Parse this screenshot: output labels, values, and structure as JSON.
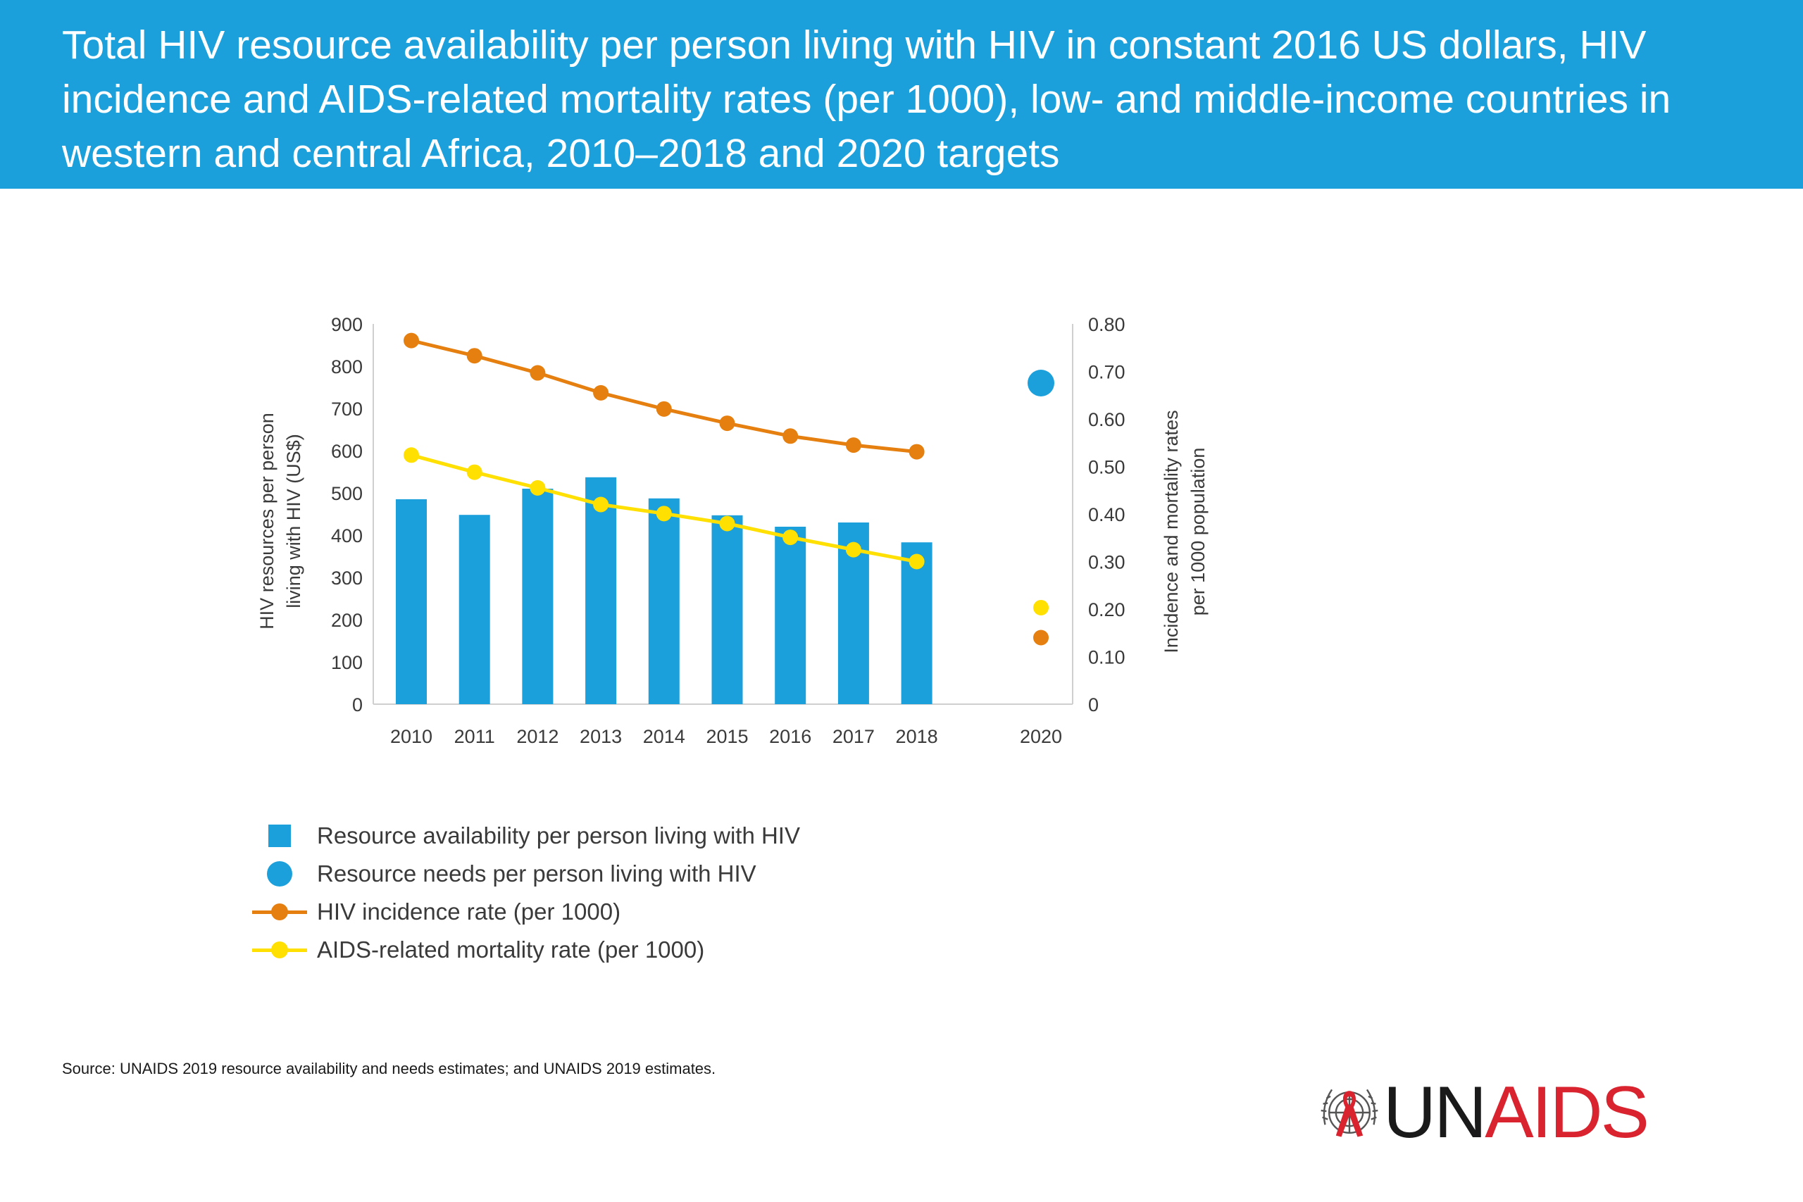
{
  "header": {
    "title": "Total HIV resource availability per person living with HIV in constant 2016 US dollars, HIV incidence and AIDS-related mortality rates (per 1000), low- and middle-income countries in western and central Africa, 2010–2018 and 2020 targets"
  },
  "chart_data": {
    "type": "bar",
    "title": "",
    "categories": [
      "2010",
      "2011",
      "2012",
      "2013",
      "2014",
      "2015",
      "2016",
      "2017",
      "2018",
      "2020"
    ],
    "ylabel_left": "HIV resources per person living with HIV (US$)",
    "ylabel_right": "Incidence and mortality rates per 1000 population",
    "ylim_left": [
      0,
      900
    ],
    "ylim_right": [
      0,
      0.8
    ],
    "left_ticks": [
      "0",
      "100",
      "200",
      "300",
      "400",
      "500",
      "600",
      "700",
      "800",
      "900"
    ],
    "right_ticks": [
      "0",
      "0.10",
      "0.20",
      "0.30",
      "0.40",
      "0.50",
      "0.60",
      "0.70",
      "0.80"
    ],
    "grid": false,
    "legend_position": "bottom-left",
    "series": [
      {
        "name": "Resource availability per person living with HIV",
        "kind": "bar",
        "axis": "left",
        "color": "#1ba0dc",
        "values": [
          485,
          448,
          510,
          537,
          487,
          447,
          420,
          430,
          383,
          null
        ]
      },
      {
        "name": "Resource needs per person living with HIV",
        "kind": "point",
        "axis": "left",
        "color": "#1ba0dc",
        "values": [
          null,
          null,
          null,
          null,
          null,
          null,
          null,
          null,
          null,
          760
        ]
      },
      {
        "name": "HIV incidence rate (per 1000)",
        "kind": "line",
        "axis": "right",
        "color": "#e57f0f",
        "values": [
          0.765,
          0.733,
          0.697,
          0.655,
          0.621,
          0.591,
          0.564,
          0.545,
          0.531,
          null
        ],
        "target": 0.14
      },
      {
        "name": "AIDS-related mortality rate (per 1000)",
        "kind": "line",
        "axis": "right",
        "color": "#ffe000",
        "values": [
          0.524,
          0.488,
          0.455,
          0.42,
          0.401,
          0.38,
          0.351,
          0.325,
          0.3,
          null
        ],
        "target": 0.203
      }
    ]
  },
  "legend": {
    "items": [
      {
        "label": "Resource availability per person living with HIV",
        "marker": "square",
        "color": "#1ba0dc"
      },
      {
        "label": "Resource needs per person living with HIV",
        "marker": "circle",
        "color": "#1ba0dc"
      },
      {
        "label": "HIV incidence rate (per 1000)",
        "marker": "line-dot",
        "color": "#e57f0f"
      },
      {
        "label": "AIDS-related mortality rate (per 1000)",
        "marker": "line-dot",
        "color": "#ffe000"
      }
    ]
  },
  "source": {
    "prefix": "Source:",
    "text": "UNAIDS 2019 resource availability and needs estimates; and UNAIDS 2019 estimates."
  },
  "logo": {
    "part1": "UN",
    "part2": "AIDS",
    "emblem_icon": "un-emblem-ribbon-icon",
    "color_dark": "#1a1a1a",
    "color_red": "#d9232e"
  }
}
